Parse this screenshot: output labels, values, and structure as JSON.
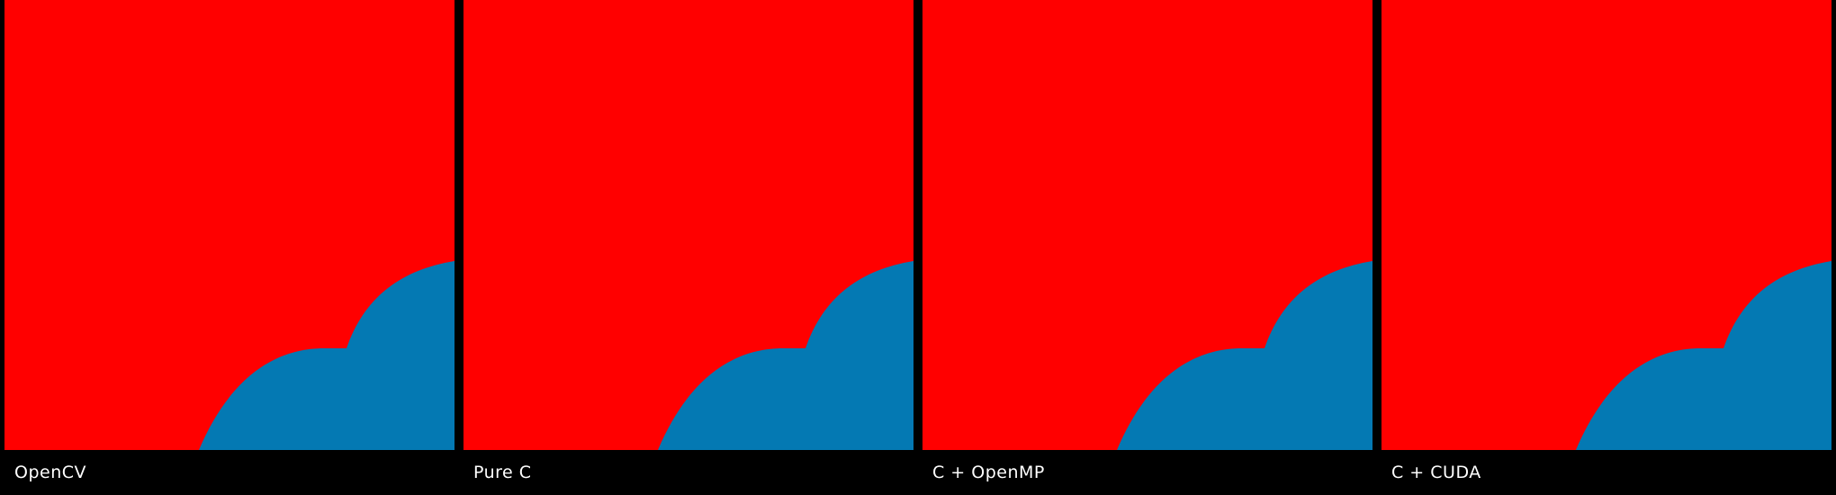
{
  "colors": {
    "background": "#000000",
    "fill_red": "#ff0000",
    "fill_blue": "#0479b3",
    "caption_text": "#ffffff"
  },
  "panels": [
    {
      "label": "OpenCV"
    },
    {
      "label": "Pure C"
    },
    {
      "label": "C + OpenMP"
    },
    {
      "label": "C + CUDA"
    }
  ]
}
